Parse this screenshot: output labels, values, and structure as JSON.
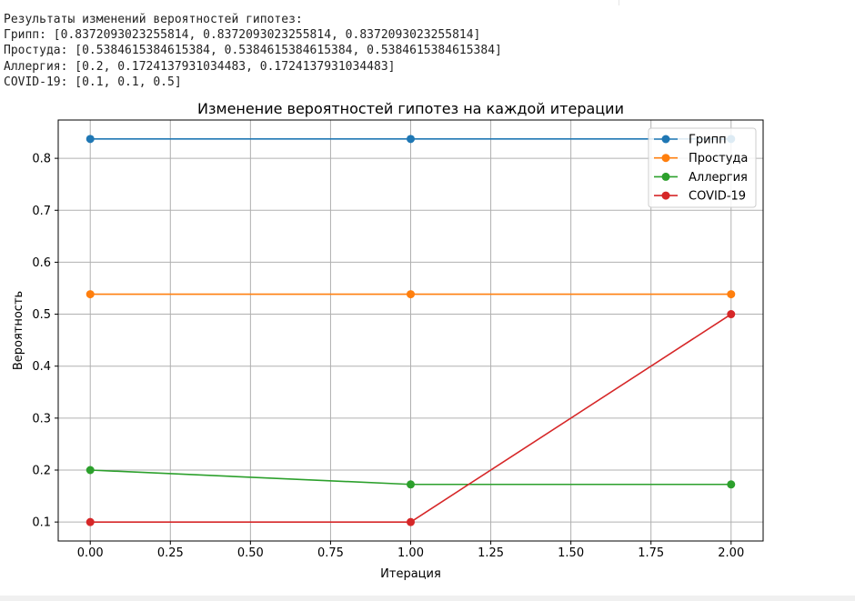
{
  "output": {
    "lines": [
      "Результаты изменений вероятностей гипотез:",
      "Грипп: [0.8372093023255814, 0.8372093023255814, 0.8372093023255814]",
      "Простуда: [0.5384615384615384, 0.5384615384615384, 0.5384615384615384]",
      "Аллергия: [0.2, 0.1724137931034483, 0.1724137931034483]",
      "COVID-19: [0.1, 0.1, 0.5]"
    ]
  },
  "chart_data": {
    "type": "line",
    "title": "Изменение вероятностей гипотез на каждой итерации",
    "xlabel": "Итерация",
    "ylabel": "Вероятность",
    "x": [
      0,
      1,
      2
    ],
    "xlim": [
      -0.1,
      2.1
    ],
    "ylim": [
      0.0635,
      0.8737
    ],
    "xticks": [
      "0.00",
      "0.25",
      "0.50",
      "0.75",
      "1.00",
      "1.25",
      "1.50",
      "1.75",
      "2.00"
    ],
    "yticks": [
      "0.1",
      "0.2",
      "0.3",
      "0.4",
      "0.5",
      "0.6",
      "0.7",
      "0.8"
    ],
    "grid": true,
    "legend_position": "top-right",
    "series": [
      {
        "name": "Грипп",
        "values": [
          0.8372093023255814,
          0.8372093023255814,
          0.8372093023255814
        ],
        "color": "#1f77b4"
      },
      {
        "name": "Простуда",
        "values": [
          0.5384615384615384,
          0.5384615384615384,
          0.5384615384615384
        ],
        "color": "#ff7f0e"
      },
      {
        "name": "Аллергия",
        "values": [
          0.2,
          0.1724137931034483,
          0.1724137931034483
        ],
        "color": "#2ca02c"
      },
      {
        "name": "COVID-19",
        "values": [
          0.1,
          0.1,
          0.5
        ],
        "color": "#d62728"
      }
    ]
  }
}
